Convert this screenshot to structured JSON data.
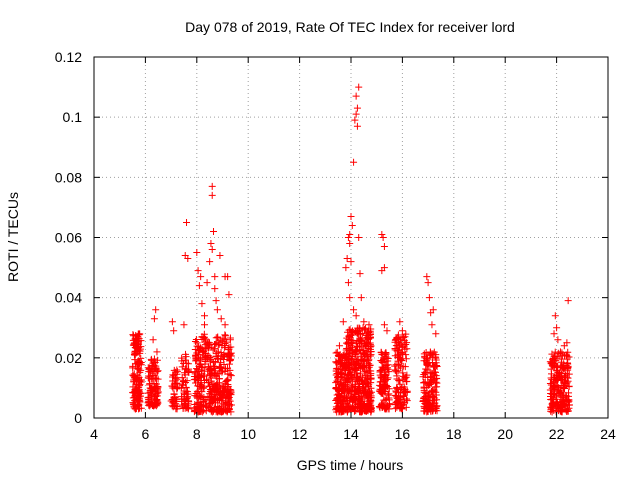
{
  "chart_data": {
    "type": "scatter",
    "title": "Day 078 of 2019, Rate Of TEC Index for receiver lord",
    "xlabel": "GPS time / hours",
    "ylabel": "ROTI / TECUs",
    "xlim": [
      4,
      24
    ],
    "ylim": [
      0,
      0.12
    ],
    "xticks": [
      4,
      6,
      8,
      10,
      12,
      14,
      16,
      18,
      20,
      22,
      24
    ],
    "yticks": [
      0,
      0.02,
      0.04,
      0.06,
      0.08,
      0.1,
      0.12
    ],
    "xtick_labels": [
      "4",
      "6",
      "8",
      "10",
      "12",
      "14",
      "16",
      "18",
      "20",
      "22",
      "24"
    ],
    "ytick_labels": [
      "0",
      "0.02",
      "0.04",
      "0.06",
      "0.08",
      "0.1",
      "0.12"
    ],
    "grid": true,
    "marker": "plus",
    "marker_color": "#ff0000",
    "clusters": [
      {
        "x_range": [
          5.5,
          5.85
        ],
        "y_range": [
          0.003,
          0.028
        ],
        "count": 160
      },
      {
        "x_range": [
          6.1,
          6.5
        ],
        "y_range": [
          0.004,
          0.02
        ],
        "count": 110
      },
      {
        "x_range": [
          7.0,
          7.25
        ],
        "y_range": [
          0.003,
          0.016
        ],
        "count": 45
      },
      {
        "x_range": [
          7.4,
          7.7
        ],
        "y_range": [
          0.003,
          0.022
        ],
        "count": 60
      },
      {
        "x_range": [
          7.9,
          9.35
        ],
        "y_range": [
          0.002,
          0.028
        ],
        "count": 420
      },
      {
        "x_range": [
          13.4,
          13.8
        ],
        "y_range": [
          0.002,
          0.022
        ],
        "count": 150
      },
      {
        "x_range": [
          13.8,
          14.8
        ],
        "y_range": [
          0.002,
          0.03
        ],
        "count": 430
      },
      {
        "x_range": [
          15.1,
          15.5
        ],
        "y_range": [
          0.003,
          0.022
        ],
        "count": 110
      },
      {
        "x_range": [
          15.7,
          16.2
        ],
        "y_range": [
          0.003,
          0.028
        ],
        "count": 130
      },
      {
        "x_range": [
          16.8,
          17.35
        ],
        "y_range": [
          0.002,
          0.022
        ],
        "count": 160
      },
      {
        "x_range": [
          21.75,
          22.5
        ],
        "y_range": [
          0.002,
          0.022
        ],
        "count": 220
      }
    ],
    "outliers": [
      [
        5.6,
        0.026
      ],
      [
        5.75,
        0.028
      ],
      [
        6.4,
        0.036
      ],
      [
        6.35,
        0.033
      ],
      [
        6.3,
        0.026
      ],
      [
        6.45,
        0.022
      ],
      [
        7.05,
        0.032
      ],
      [
        7.1,
        0.029
      ],
      [
        7.5,
        0.031
      ],
      [
        7.6,
        0.065
      ],
      [
        7.55,
        0.054
      ],
      [
        7.65,
        0.053
      ],
      [
        8.0,
        0.055
      ],
      [
        8.05,
        0.049
      ],
      [
        8.15,
        0.047
      ],
      [
        8.1,
        0.044
      ],
      [
        8.2,
        0.038
      ],
      [
        8.3,
        0.034
      ],
      [
        8.3,
        0.031
      ],
      [
        8.4,
        0.045
      ],
      [
        8.5,
        0.052
      ],
      [
        8.55,
        0.058
      ],
      [
        8.6,
        0.077
      ],
      [
        8.6,
        0.074
      ],
      [
        8.65,
        0.062
      ],
      [
        8.7,
        0.047
      ],
      [
        8.7,
        0.043
      ],
      [
        8.75,
        0.039
      ],
      [
        8.8,
        0.036
      ],
      [
        8.6,
        0.056
      ],
      [
        8.9,
        0.054
      ],
      [
        9.1,
        0.047
      ],
      [
        9.2,
        0.047
      ],
      [
        9.25,
        0.041
      ],
      [
        9.1,
        0.031
      ],
      [
        8.95,
        0.033
      ],
      [
        13.55,
        0.024
      ],
      [
        13.7,
        0.032
      ],
      [
        13.8,
        0.05
      ],
      [
        13.85,
        0.053
      ],
      [
        13.9,
        0.06
      ],
      [
        13.95,
        0.061
      ],
      [
        13.95,
        0.058
      ],
      [
        13.9,
        0.045
      ],
      [
        13.95,
        0.04
      ],
      [
        14.0,
        0.067
      ],
      [
        14.05,
        0.064
      ],
      [
        14.0,
        0.052
      ],
      [
        14.1,
        0.085
      ],
      [
        14.15,
        0.099
      ],
      [
        14.2,
        0.101
      ],
      [
        14.25,
        0.103
      ],
      [
        14.2,
        0.107
      ],
      [
        14.3,
        0.11
      ],
      [
        14.25,
        0.097
      ],
      [
        14.3,
        0.06
      ],
      [
        14.35,
        0.048
      ],
      [
        14.4,
        0.04
      ],
      [
        14.1,
        0.036
      ],
      [
        14.2,
        0.034
      ],
      [
        14.5,
        0.032
      ],
      [
        14.7,
        0.031
      ],
      [
        15.2,
        0.061
      ],
      [
        15.25,
        0.06
      ],
      [
        15.3,
        0.057
      ],
      [
        15.3,
        0.05
      ],
      [
        15.2,
        0.049
      ],
      [
        15.3,
        0.031
      ],
      [
        15.4,
        0.029
      ],
      [
        15.9,
        0.032
      ],
      [
        16.0,
        0.029
      ],
      [
        16.1,
        0.027
      ],
      [
        16.95,
        0.047
      ],
      [
        17.0,
        0.045
      ],
      [
        17.05,
        0.04
      ],
      [
        17.1,
        0.035
      ],
      [
        17.2,
        0.036
      ],
      [
        17.15,
        0.031
      ],
      [
        17.3,
        0.028
      ],
      [
        21.95,
        0.034
      ],
      [
        22.0,
        0.03
      ],
      [
        22.05,
        0.026
      ],
      [
        21.9,
        0.028
      ],
      [
        22.15,
        0.022
      ],
      [
        22.45,
        0.039
      ],
      [
        22.4,
        0.025
      ],
      [
        22.3,
        0.024
      ]
    ]
  }
}
